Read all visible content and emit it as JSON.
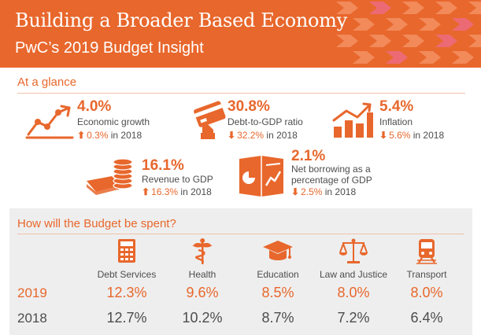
{
  "header": {
    "title": "Building a Broader Based Economy",
    "subtitle": "PwC’s 2019 Budget Insight"
  },
  "glance": {
    "heading": "At a glance",
    "stats": [
      {
        "icon": "line-chart-icon",
        "value": "4.0%",
        "label": "Economic growth",
        "direction": "up",
        "change": "0.3%",
        "suffix": " in 2018"
      },
      {
        "icon": "credit-card-icon",
        "value": "30.8%",
        "label": "Debt-to-GDP ratio",
        "direction": "down",
        "change": "32.2%",
        "suffix": " in 2018"
      },
      {
        "icon": "bar-chart-icon",
        "value": "5.4%",
        "label": "Inflation",
        "direction": "down",
        "change": "5.6%",
        "suffix": " in 2018"
      },
      {
        "icon": "coins-icon",
        "value": "16.1%",
        "label": "Revenue to GDP",
        "direction": "up",
        "change": "16.3%",
        "suffix": " in 2018"
      },
      {
        "icon": "report-icon",
        "value": "2.1%",
        "label_line1": "Net borrowing as a",
        "label_line2": "percentage of GDP",
        "direction": "down",
        "change": "2.5%",
        "suffix": " in 2018"
      }
    ]
  },
  "budget": {
    "heading": "How will the Budget be spent?",
    "years": [
      "2019",
      "2018"
    ],
    "categories": [
      {
        "icon": "calculator-icon",
        "label": "Debt Services",
        "v2019": "12.3%",
        "v2018": "12.7%"
      },
      {
        "icon": "caduceus-icon",
        "label": "Health",
        "v2019": "9.6%",
        "v2018": "10.2%"
      },
      {
        "icon": "graduation-cap-icon",
        "label": "Education",
        "v2019": "8.5%",
        "v2018": "8.7%"
      },
      {
        "icon": "scales-icon",
        "label": "Law and Justice",
        "v2019": "8.0%",
        "v2018": "7.2%"
      },
      {
        "icon": "train-icon",
        "label": "Transport",
        "v2019": "8.0%",
        "v2018": "6.4%"
      }
    ]
  },
  "colors": {
    "accent": "#e8672c",
    "text": "#4d4d4d",
    "panel": "#eeeeee"
  },
  "arrows": {
    "up": "⬆",
    "down": "⬇"
  }
}
